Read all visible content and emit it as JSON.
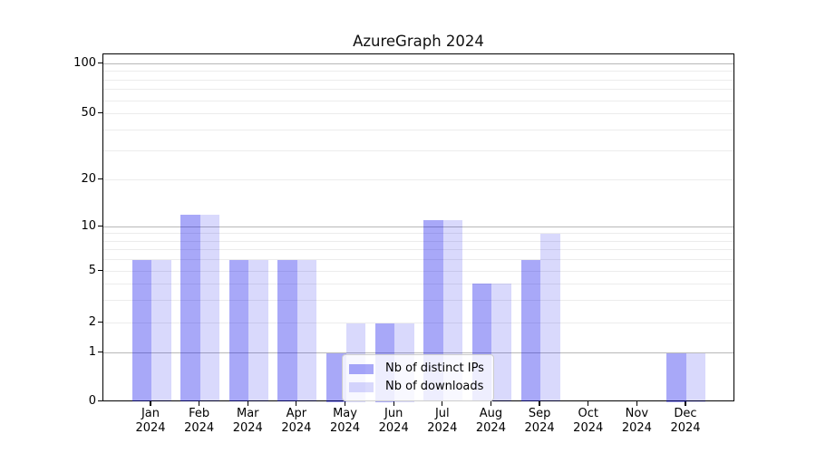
{
  "chart_data": {
    "type": "bar",
    "title": "AzureGraph 2024",
    "categories": [
      "Jan 2024",
      "Feb 2024",
      "Mar 2024",
      "Apr 2024",
      "May 2024",
      "Jun 2024",
      "Jul 2024",
      "Aug 2024",
      "Sep 2024",
      "Oct 2024",
      "Nov 2024",
      "Dec 2024"
    ],
    "series": [
      {
        "name": "Nb of distinct IPs",
        "color": "#a8a8f8",
        "values": [
          6,
          12,
          6,
          6,
          1,
          2,
          11,
          4,
          6,
          0,
          0,
          1
        ]
      },
      {
        "name": "Nb of downloads",
        "color": "#d9d9fc",
        "values": [
          6,
          12,
          6,
          6,
          2,
          2,
          11,
          4,
          9,
          0,
          0,
          1
        ]
      }
    ],
    "xlabel": "",
    "ylabel": "",
    "yscale": "log-like",
    "yticks_labeled": [
      0,
      1,
      2,
      5,
      10,
      20,
      50,
      100
    ],
    "grid_major_values": [
      1,
      10,
      100
    ],
    "grid_minor_values": [
      2,
      3,
      4,
      5,
      6,
      7,
      8,
      9,
      20,
      30,
      40,
      50,
      60,
      70,
      80,
      90
    ],
    "grid": "on",
    "legend_position": "lower center",
    "grid_major_color": "#b8b8b8",
    "grid_minor_color": "#ececec"
  }
}
